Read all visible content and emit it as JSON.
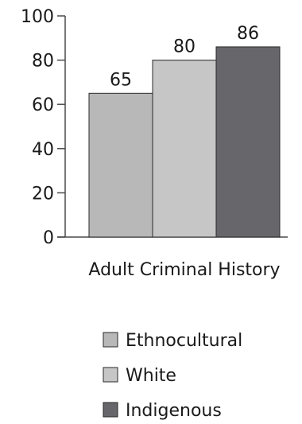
{
  "chart_data": {
    "type": "bar",
    "categories": [
      "Adult Criminal History"
    ],
    "series": [
      {
        "name": "Ethnocultural",
        "values": [
          65
        ],
        "color": "#b8b8b8"
      },
      {
        "name": "White",
        "values": [
          80
        ],
        "color": "#c6c6c6"
      },
      {
        "name": "Indigenous",
        "values": [
          86
        ],
        "color": "#67676b"
      }
    ],
    "data_labels": [
      "65",
      "80",
      "86"
    ],
    "ylim": [
      0,
      100
    ],
    "y_ticks": [
      0,
      20,
      40,
      60,
      80,
      100
    ],
    "y_tick_labels": [
      "0",
      "20",
      "40",
      "60",
      "80",
      "100"
    ],
    "title": "",
    "xlabel": "",
    "ylabel": "",
    "grid": false,
    "legend_position": "bottom"
  }
}
